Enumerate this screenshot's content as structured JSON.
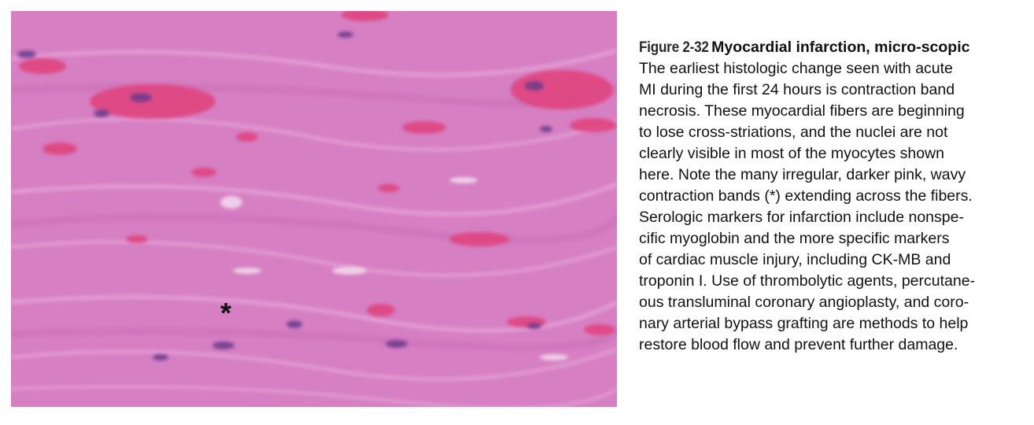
{
  "figure": {
    "label": "Figure 2-32",
    "title": "Myocardial infarction, micro-scopic",
    "image_marker": "*",
    "image_colors": {
      "background": "#d67fc3",
      "contraction_band": "#e0457f",
      "nucleus": "#6a3a8c",
      "fiber_highlight": "#e9a7d8"
    },
    "caption_lines": [
      "The earliest histologic change seen with acute",
      "MI during the first 24 hours is contraction band",
      "necrosis. These myocardial fibers are beginning",
      "to lose cross-striations, and the nuclei are not",
      "clearly visible in most of the myocytes shown",
      "here. Note the many irregular, darker pink, wavy",
      "contraction bands (*) extending across the fibers.",
      "Serologic markers for infarction include nonspe-",
      "cific myoglobin and the more specific markers",
      "of cardiac muscle injury, including CK-MB and",
      "troponin I. Use of thrombolytic agents, percutane-",
      "ous transluminal coronary angioplasty, and coro-",
      "nary arterial bypass grafting are methods to help",
      "restore blood flow and prevent further damage."
    ]
  }
}
